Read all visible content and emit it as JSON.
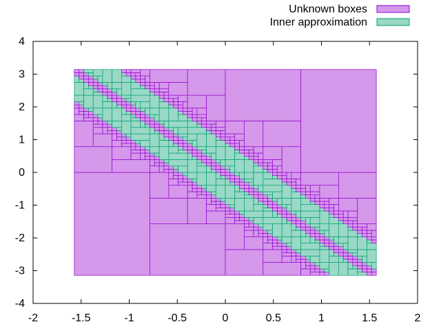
{
  "chart_data": {
    "type": "box-paving",
    "xlim": [
      -2,
      2
    ],
    "ylim": [
      -4,
      4
    ],
    "x_ticks": [
      "-2",
      "-1.5",
      "-1",
      "-0.5",
      "0",
      "0.5",
      "1",
      "1.5",
      "2"
    ],
    "y_ticks": [
      "4",
      "3",
      "2",
      "1",
      "0",
      "-1",
      "-2",
      "-3",
      "-4"
    ],
    "grid": false,
    "legend_position": "top-right, outside plot",
    "domain": {
      "x": [
        -1.5708,
        1.5708
      ],
      "y": [
        -3.1416,
        3.1416
      ]
    },
    "boundary_curve": "x + y/2 = 0",
    "series": [
      {
        "name": "Unknown boxes",
        "fill": "#d598ea",
        "stroke": "#9400d3",
        "region": "outside band + boundary"
      },
      {
        "name": "Inner approximation",
        "fill": "#99d9c5",
        "stroke": "#009e73",
        "region": "|x + y/2| < 0.5 (band around boundary)"
      }
    ]
  },
  "legend": {
    "items": [
      {
        "label": "Unknown boxes",
        "swatch_fill": "#d598ea",
        "swatch_stroke": "#9400d3"
      },
      {
        "label": "Inner approximation",
        "swatch_fill": "#99d9c5",
        "swatch_stroke": "#009e73"
      }
    ]
  }
}
